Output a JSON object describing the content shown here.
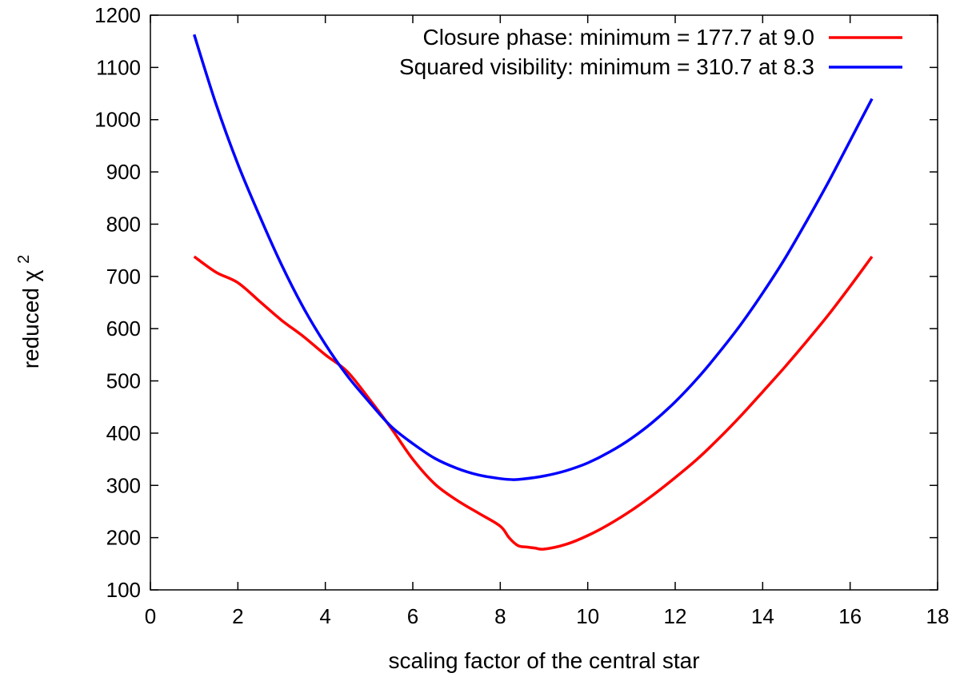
{
  "chart_data": {
    "type": "line",
    "title": "",
    "xlabel": "scaling factor of the central star",
    "ylabel_text": "reduced χ",
    "ylabel_superscript": "2",
    "xlim": [
      0,
      18
    ],
    "ylim": [
      100,
      1200
    ],
    "xticks": [
      0,
      2,
      4,
      6,
      8,
      10,
      12,
      14,
      16,
      18
    ],
    "yticks": [
      100,
      200,
      300,
      400,
      500,
      600,
      700,
      800,
      900,
      1000,
      1100,
      1200
    ],
    "grid": false,
    "legend_position": "top-right",
    "series": [
      {
        "name": "Closure phase: minimum = 177.7 at 9.0",
        "color": "#ff0000",
        "x": [
          1.0,
          1.5,
          2.0,
          2.5,
          3.0,
          3.5,
          4.0,
          4.5,
          5.0,
          5.5,
          6.0,
          6.5,
          7.0,
          7.5,
          8.0,
          8.2,
          8.4,
          8.6,
          8.8,
          9.0,
          9.5,
          10.0,
          10.5,
          11.0,
          11.5,
          12.0,
          12.5,
          13.0,
          13.5,
          14.0,
          14.5,
          15.0,
          15.5,
          16.0,
          16.5
        ],
        "y": [
          738,
          708,
          688,
          652,
          616,
          585,
          550,
          518,
          466,
          410,
          350,
          303,
          272,
          247,
          222,
          200,
          185,
          182,
          180,
          178,
          187,
          204,
          226,
          252,
          282,
          315,
          350,
          390,
          433,
          479,
          526,
          575,
          626,
          681,
          738
        ]
      },
      {
        "name": "Squared visibility: minimum = 310.7 at 8.3",
        "color": "#0000ff",
        "x": [
          1.0,
          1.5,
          2.0,
          2.5,
          3.0,
          3.5,
          4.0,
          4.5,
          5.0,
          5.5,
          6.0,
          6.5,
          7.0,
          7.5,
          8.0,
          8.3,
          8.5,
          9.0,
          9.5,
          10.0,
          10.5,
          11.0,
          11.5,
          12.0,
          12.5,
          13.0,
          13.5,
          14.0,
          14.5,
          15.0,
          15.5,
          16.0,
          16.5
        ],
        "y": [
          1163,
          1030,
          915,
          815,
          722,
          640,
          570,
          510,
          460,
          413,
          380,
          352,
          333,
          320,
          313,
          311,
          312,
          318,
          328,
          343,
          364,
          390,
          422,
          460,
          504,
          554,
          608,
          668,
          733,
          805,
          880,
          960,
          1040
        ]
      }
    ]
  }
}
